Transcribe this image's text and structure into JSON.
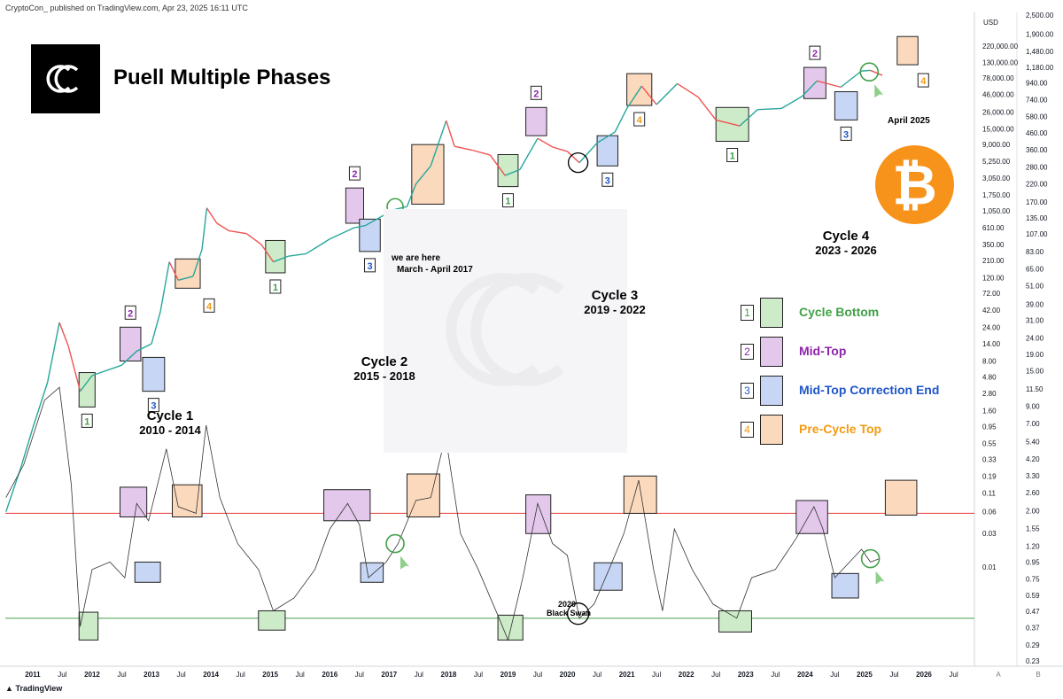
{
  "header": {
    "publisher_line": "CryptoCon_ published on TradingView.com, Apr 23, 2025 16:11 UTC",
    "footer_brand": "TradingView"
  },
  "title": "Puell Multiple Phases",
  "logo_icon": "cryptocon-c-logo-icon",
  "bitcoin_icon": "bitcoin-coin-icon",
  "colors": {
    "bottom": "#cdebc8",
    "midtop": "#e3c8ec",
    "correction": "#c8d6f5",
    "pretop": "#fbd9bd",
    "green_text": "#43a047",
    "purple_text": "#8e24aa",
    "blue_text": "#1e56c8",
    "orange_text": "#f39a12",
    "upper_line": "#e53935",
    "lower_line": "#43a047",
    "btc": "#f7931a"
  },
  "legend": [
    {
      "num": "1",
      "label": "Cycle Bottom",
      "phase": "bottom"
    },
    {
      "num": "2",
      "label": "Mid-Top",
      "phase": "midtop"
    },
    {
      "num": "3",
      "label": "Mid-Top Correction End",
      "phase": "correction"
    },
    {
      "num": "4",
      "label": "Pre-Cycle Top",
      "phase": "pretop"
    }
  ],
  "cycles": [
    {
      "name": "Cycle 1",
      "years": "2010 - 2014"
    },
    {
      "name": "Cycle 2",
      "years": "2015 - 2018"
    },
    {
      "name": "Cycle 3",
      "years": "2019 - 2022"
    },
    {
      "name": "Cycle 4",
      "years": "2023 - 2026"
    }
  ],
  "annotations": {
    "we_are_here": "we are here",
    "march_april_2017": "March - April 2017",
    "april_2025": "April 2025",
    "black_swan_year": "2020",
    "black_swan": "Black Swan"
  },
  "chart_data": {
    "type": "line",
    "price_axis": {
      "unit": "USD",
      "scale": "log",
      "ticks": [
        "220,000.00",
        "130,000.00",
        "78,000.00",
        "46,000.00",
        "26,000.00",
        "15,000.00",
        "9,000.00",
        "5,250.00",
        "3,050.00",
        "1,750.00",
        "1,050.00",
        "610.00",
        "350.00",
        "210.00",
        "120.00",
        "72.00",
        "42.00",
        "24.00",
        "14.00",
        "8.00",
        "4.80",
        "2.80",
        "1.60",
        "0.95",
        "0.55",
        "0.33",
        "0.19",
        "0.11",
        "0.06",
        "0.03",
        "0.01"
      ]
    },
    "puell_axis": {
      "scale": "log",
      "ticks": [
        "2,500.00",
        "1,900.00",
        "1,480.00",
        "1,180.00",
        "940.00",
        "740.00",
        "580.00",
        "460.00",
        "360.00",
        "280.00",
        "220.00",
        "170.00",
        "135.00",
        "107.00",
        "83.00",
        "65.00",
        "51.00",
        "39.00",
        "31.00",
        "24.00",
        "19.00",
        "15.00",
        "11.50",
        "9.00",
        "7.00",
        "5.40",
        "4.20",
        "3.30",
        "2.60",
        "2.00",
        "1.55",
        "1.20",
        "0.95",
        "0.75",
        "0.59",
        "0.47",
        "0.37",
        "0.29",
        "0.23"
      ],
      "upper_threshold": 2.0,
      "lower_threshold": 0.45
    },
    "x_axis": {
      "labels": [
        "2011",
        "Jul",
        "2012",
        "Jul",
        "2013",
        "Jul",
        "2014",
        "Jul",
        "2015",
        "Jul",
        "2016",
        "Jul",
        "2017",
        "Jul",
        "2018",
        "Jul",
        "2019",
        "Jul",
        "2020",
        "Jul",
        "2021",
        "Jul",
        "2022",
        "Jul",
        "2023",
        "Jul",
        "2024",
        "Jul",
        "2025",
        "Jul",
        "2026",
        "Jul"
      ]
    },
    "scale_letters": [
      "A",
      "B"
    ],
    "price_series": [
      {
        "t": 2010.55,
        "v": 0.06
      },
      {
        "t": 2010.8,
        "v": 0.25
      },
      {
        "t": 2011.0,
        "v": 0.9
      },
      {
        "t": 2011.25,
        "v": 4
      },
      {
        "t": 2011.45,
        "v": 28
      },
      {
        "t": 2011.6,
        "v": 13
      },
      {
        "t": 2011.8,
        "v": 3
      },
      {
        "t": 2012.0,
        "v": 5
      },
      {
        "t": 2012.5,
        "v": 7
      },
      {
        "t": 2012.75,
        "v": 11
      },
      {
        "t": 2013.0,
        "v": 14
      },
      {
        "t": 2013.15,
        "v": 40
      },
      {
        "t": 2013.3,
        "v": 200
      },
      {
        "t": 2013.45,
        "v": 110
      },
      {
        "t": 2013.7,
        "v": 125
      },
      {
        "t": 2013.85,
        "v": 300
      },
      {
        "t": 2013.93,
        "v": 1150
      },
      {
        "t": 2014.1,
        "v": 700
      },
      {
        "t": 2014.3,
        "v": 550
      },
      {
        "t": 2014.6,
        "v": 500
      },
      {
        "t": 2014.85,
        "v": 350
      },
      {
        "t": 2015.05,
        "v": 200
      },
      {
        "t": 2015.3,
        "v": 240
      },
      {
        "t": 2015.6,
        "v": 260
      },
      {
        "t": 2015.85,
        "v": 350
      },
      {
        "t": 2016.0,
        "v": 420
      },
      {
        "t": 2016.4,
        "v": 600
      },
      {
        "t": 2016.6,
        "v": 650
      },
      {
        "t": 2016.9,
        "v": 900
      },
      {
        "t": 2017.1,
        "v": 1100
      },
      {
        "t": 2017.3,
        "v": 1200
      },
      {
        "t": 2017.45,
        "v": 2500
      },
      {
        "t": 2017.7,
        "v": 4500
      },
      {
        "t": 2017.96,
        "v": 19500
      },
      {
        "t": 2018.1,
        "v": 8500
      },
      {
        "t": 2018.4,
        "v": 7500
      },
      {
        "t": 2018.7,
        "v": 6400
      },
      {
        "t": 2018.95,
        "v": 3300
      },
      {
        "t": 2019.2,
        "v": 4000
      },
      {
        "t": 2019.5,
        "v": 11000
      },
      {
        "t": 2019.75,
        "v": 8300
      },
      {
        "t": 2020.0,
        "v": 7200
      },
      {
        "t": 2020.2,
        "v": 5000
      },
      {
        "t": 2020.5,
        "v": 9500
      },
      {
        "t": 2020.8,
        "v": 13500
      },
      {
        "t": 2021.0,
        "v": 29000
      },
      {
        "t": 2021.25,
        "v": 60000
      },
      {
        "t": 2021.5,
        "v": 33000
      },
      {
        "t": 2021.85,
        "v": 65000
      },
      {
        "t": 2022.2,
        "v": 42000
      },
      {
        "t": 2022.5,
        "v": 20000
      },
      {
        "t": 2022.9,
        "v": 16500
      },
      {
        "t": 2023.2,
        "v": 28000
      },
      {
        "t": 2023.6,
        "v": 29000
      },
      {
        "t": 2023.95,
        "v": 43000
      },
      {
        "t": 2024.2,
        "v": 71000
      },
      {
        "t": 2024.6,
        "v": 58000
      },
      {
        "t": 2024.95,
        "v": 98000
      },
      {
        "t": 2025.1,
        "v": 100000
      },
      {
        "t": 2025.3,
        "v": 85000
      }
    ],
    "puell_series": [
      {
        "t": 2010.55,
        "v": 2.5
      },
      {
        "t": 2010.85,
        "v": 4
      },
      {
        "t": 2011.2,
        "v": 10
      },
      {
        "t": 2011.45,
        "v": 12
      },
      {
        "t": 2011.65,
        "v": 3
      },
      {
        "t": 2011.8,
        "v": 0.4
      },
      {
        "t": 2012.0,
        "v": 0.9
      },
      {
        "t": 2012.3,
        "v": 1.0
      },
      {
        "t": 2012.55,
        "v": 0.8
      },
      {
        "t": 2012.75,
        "v": 2.3
      },
      {
        "t": 2012.95,
        "v": 1.8
      },
      {
        "t": 2013.25,
        "v": 5
      },
      {
        "t": 2013.45,
        "v": 2.2
      },
      {
        "t": 2013.75,
        "v": 2.0
      },
      {
        "t": 2013.92,
        "v": 7
      },
      {
        "t": 2014.15,
        "v": 2.5
      },
      {
        "t": 2014.45,
        "v": 1.3
      },
      {
        "t": 2014.8,
        "v": 0.9
      },
      {
        "t": 2015.05,
        "v": 0.5
      },
      {
        "t": 2015.4,
        "v": 0.6
      },
      {
        "t": 2015.75,
        "v": 0.9
      },
      {
        "t": 2016.0,
        "v": 1.6
      },
      {
        "t": 2016.3,
        "v": 2.3
      },
      {
        "t": 2016.5,
        "v": 1.7
      },
      {
        "t": 2016.65,
        "v": 0.8
      },
      {
        "t": 2016.95,
        "v": 1.0
      },
      {
        "t": 2017.15,
        "v": 1.3
      },
      {
        "t": 2017.45,
        "v": 2.4
      },
      {
        "t": 2017.7,
        "v": 2.5
      },
      {
        "t": 2017.95,
        "v": 6
      },
      {
        "t": 2018.2,
        "v": 1.5
      },
      {
        "t": 2018.5,
        "v": 0.9
      },
      {
        "t": 2018.85,
        "v": 0.45
      },
      {
        "t": 2019.0,
        "v": 0.33
      },
      {
        "t": 2019.25,
        "v": 0.8
      },
      {
        "t": 2019.5,
        "v": 2.3
      },
      {
        "t": 2019.75,
        "v": 1.3
      },
      {
        "t": 2020.0,
        "v": 1.1
      },
      {
        "t": 2020.2,
        "v": 0.45
      },
      {
        "t": 2020.45,
        "v": 0.55
      },
      {
        "t": 2020.7,
        "v": 0.9
      },
      {
        "t": 2020.95,
        "v": 1.5
      },
      {
        "t": 2021.2,
        "v": 3.2
      },
      {
        "t": 2021.45,
        "v": 0.9
      },
      {
        "t": 2021.6,
        "v": 0.5
      },
      {
        "t": 2021.8,
        "v": 1.6
      },
      {
        "t": 2022.1,
        "v": 0.9
      },
      {
        "t": 2022.45,
        "v": 0.55
      },
      {
        "t": 2022.85,
        "v": 0.45
      },
      {
        "t": 2023.1,
        "v": 0.8
      },
      {
        "t": 2023.5,
        "v": 0.9
      },
      {
        "t": 2023.85,
        "v": 1.4
      },
      {
        "t": 2024.15,
        "v": 2.2
      },
      {
        "t": 2024.3,
        "v": 1.6
      },
      {
        "t": 2024.5,
        "v": 0.8
      },
      {
        "t": 2024.75,
        "v": 1.0
      },
      {
        "t": 2024.95,
        "v": 1.2
      },
      {
        "t": 2025.1,
        "v": 1.0
      },
      {
        "t": 2025.25,
        "v": 1.05
      }
    ],
    "phase_boxes": [
      {
        "phase": "bottom",
        "panel": "price",
        "t0": 2011.78,
        "t1": 2012.05,
        "v0": 1.8,
        "v1": 5.5,
        "num": "1"
      },
      {
        "phase": "midtop",
        "panel": "price",
        "t0": 2012.47,
        "t1": 2012.82,
        "v0": 8,
        "v1": 24,
        "num": "2"
      },
      {
        "phase": "correction",
        "panel": "price",
        "t0": 2012.85,
        "t1": 2013.22,
        "v0": 3,
        "v1": 9,
        "num": "3"
      },
      {
        "phase": "pretop",
        "panel": "price",
        "t0": 2013.4,
        "t1": 2013.82,
        "v0": 85,
        "v1": 220,
        "num": "4"
      },
      {
        "phase": "bottom",
        "panel": "price",
        "t0": 2014.92,
        "t1": 2015.25,
        "v0": 140,
        "v1": 400,
        "num": "1"
      },
      {
        "phase": "midtop",
        "panel": "price",
        "t0": 2016.27,
        "t1": 2016.57,
        "v0": 700,
        "v1": 2200,
        "num": "2"
      },
      {
        "phase": "correction",
        "panel": "price",
        "t0": 2016.5,
        "t1": 2016.85,
        "v0": 280,
        "v1": 800,
        "num": "3"
      },
      {
        "phase": "pretop",
        "panel": "price",
        "t0": 2017.38,
        "t1": 2017.92,
        "v0": 1300,
        "v1": 9000,
        "num": "4"
      },
      {
        "phase": "bottom",
        "panel": "price",
        "t0": 2018.83,
        "t1": 2019.17,
        "v0": 2300,
        "v1": 6500,
        "num": "1"
      },
      {
        "phase": "midtop",
        "panel": "price",
        "t0": 2019.3,
        "t1": 2019.65,
        "v0": 12000,
        "v1": 30000,
        "num": "2"
      },
      {
        "phase": "correction",
        "panel": "price",
        "t0": 2020.5,
        "t1": 2020.85,
        "v0": 4500,
        "v1": 12000,
        "num": "3"
      },
      {
        "phase": "pretop",
        "panel": "price",
        "t0": 2021.0,
        "t1": 2021.42,
        "v0": 32000,
        "v1": 90000,
        "num": "4"
      },
      {
        "phase": "bottom",
        "panel": "price",
        "t0": 2022.5,
        "t1": 2023.05,
        "v0": 10000,
        "v1": 30000,
        "num": "1"
      },
      {
        "phase": "midtop",
        "panel": "price",
        "t0": 2023.98,
        "t1": 2024.35,
        "v0": 40000,
        "v1": 110000,
        "num": "2"
      },
      {
        "phase": "correction",
        "panel": "price",
        "t0": 2024.5,
        "t1": 2024.88,
        "v0": 20000,
        "v1": 50000,
        "num": "3"
      },
      {
        "phase": "pretop",
        "panel": "price",
        "t0": 2025.55,
        "t1": 2025.9,
        "v0": 120000,
        "v1": 300000,
        "num": "4"
      },
      {
        "phase": "bottom",
        "panel": "puell",
        "t0": 2011.78,
        "t1": 2012.1,
        "v0": 0.33,
        "v1": 0.49
      },
      {
        "phase": "midtop",
        "panel": "puell",
        "t0": 2012.47,
        "t1": 2012.92,
        "v0": 1.9,
        "v1": 2.9
      },
      {
        "phase": "correction",
        "panel": "puell",
        "t0": 2012.72,
        "t1": 2013.15,
        "v0": 0.75,
        "v1": 1.0
      },
      {
        "phase": "pretop",
        "panel": "puell",
        "t0": 2013.35,
        "t1": 2013.85,
        "v0": 1.9,
        "v1": 3.0
      },
      {
        "phase": "bottom",
        "panel": "puell",
        "t0": 2014.8,
        "t1": 2015.25,
        "v0": 0.38,
        "v1": 0.5
      },
      {
        "phase": "midtop",
        "panel": "puell",
        "t0": 2015.9,
        "t1": 2016.68,
        "v0": 1.8,
        "v1": 2.8
      },
      {
        "phase": "correction",
        "panel": "puell",
        "t0": 2016.52,
        "t1": 2016.9,
        "v0": 0.75,
        "v1": 0.99
      },
      {
        "phase": "pretop",
        "panel": "puell",
        "t0": 2017.3,
        "t1": 2017.85,
        "v0": 1.9,
        "v1": 3.5
      },
      {
        "phase": "bottom",
        "panel": "puell",
        "t0": 2018.83,
        "t1": 2019.25,
        "v0": 0.33,
        "v1": 0.47
      },
      {
        "phase": "midtop",
        "panel": "puell",
        "t0": 2019.3,
        "t1": 2019.72,
        "v0": 1.5,
        "v1": 2.6
      },
      {
        "phase": "correction",
        "panel": "puell",
        "t0": 2020.45,
        "t1": 2020.92,
        "v0": 0.67,
        "v1": 0.99
      },
      {
        "phase": "pretop",
        "panel": "puell",
        "t0": 2020.95,
        "t1": 2021.5,
        "v0": 2.0,
        "v1": 3.4
      },
      {
        "phase": "bottom",
        "panel": "puell",
        "t0": 2022.55,
        "t1": 2023.1,
        "v0": 0.37,
        "v1": 0.5
      },
      {
        "phase": "midtop",
        "panel": "puell",
        "t0": 2023.85,
        "t1": 2024.38,
        "v0": 1.5,
        "v1": 2.4
      },
      {
        "phase": "correction",
        "panel": "puell",
        "t0": 2024.45,
        "t1": 2024.9,
        "v0": 0.6,
        "v1": 0.85
      },
      {
        "phase": "pretop",
        "panel": "puell",
        "t0": 2025.35,
        "t1": 2025.88,
        "v0": 1.95,
        "v1": 3.2
      }
    ]
  }
}
